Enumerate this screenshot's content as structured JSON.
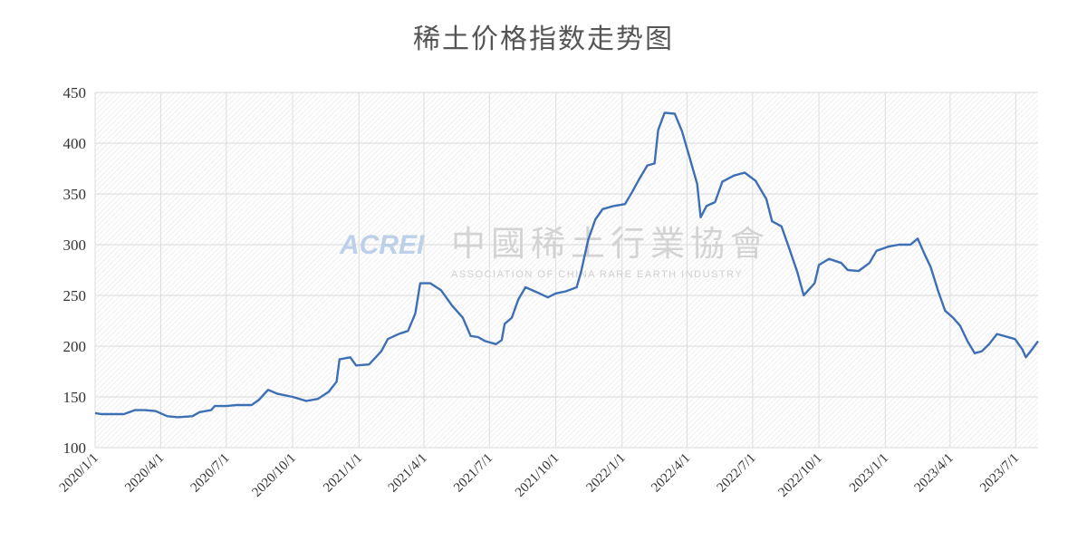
{
  "chart_data": {
    "type": "line",
    "title": "稀土价格指数走势图",
    "xlabel": "",
    "ylabel": "",
    "ylim": [
      100,
      450
    ],
    "yticks": [
      100,
      150,
      200,
      250,
      300,
      350,
      400,
      450
    ],
    "xlim": [
      "2020-01-01",
      "2023-08-01"
    ],
    "xticks": [
      "2020/1/1",
      "2020/4/1",
      "2020/7/1",
      "2020/10/1",
      "2021/1/1",
      "2021/4/1",
      "2021/7/1",
      "2021/10/1",
      "2022/1/1",
      "2022/4/1",
      "2022/7/1",
      "2022/10/1",
      "2023/1/1",
      "2023/4/1",
      "2023/7/1"
    ],
    "grid": true,
    "legend": "none",
    "line_color": "#3d6fb5",
    "series": [
      {
        "points": [
          [
            "2020-01-01",
            134
          ],
          [
            "2020-01-10",
            133
          ],
          [
            "2020-02-10",
            133
          ],
          [
            "2020-02-25",
            137
          ],
          [
            "2020-03-10",
            137
          ],
          [
            "2020-03-25",
            136
          ],
          [
            "2020-04-10",
            131
          ],
          [
            "2020-04-25",
            130
          ],
          [
            "2020-05-15",
            131
          ],
          [
            "2020-05-25",
            135
          ],
          [
            "2020-06-10",
            137
          ],
          [
            "2020-06-15",
            141
          ],
          [
            "2020-07-01",
            141
          ],
          [
            "2020-07-15",
            142
          ],
          [
            "2020-08-05",
            142
          ],
          [
            "2020-08-15",
            147
          ],
          [
            "2020-08-28",
            157
          ],
          [
            "2020-09-10",
            153
          ],
          [
            "2020-10-01",
            150
          ],
          [
            "2020-10-20",
            146
          ],
          [
            "2020-11-05",
            148
          ],
          [
            "2020-11-20",
            155
          ],
          [
            "2020-12-01",
            165
          ],
          [
            "2020-12-05",
            187
          ],
          [
            "2020-12-20",
            189
          ],
          [
            "2020-12-28",
            181
          ],
          [
            "2021-01-15",
            182
          ],
          [
            "2021-02-01",
            195
          ],
          [
            "2021-02-10",
            207
          ],
          [
            "2021-02-25",
            212
          ],
          [
            "2021-03-10",
            215
          ],
          [
            "2021-03-20",
            232
          ],
          [
            "2021-03-27",
            262
          ],
          [
            "2021-04-10",
            262
          ],
          [
            "2021-04-25",
            255
          ],
          [
            "2021-05-10",
            240
          ],
          [
            "2021-05-25",
            228
          ],
          [
            "2021-06-05",
            210
          ],
          [
            "2021-06-15",
            209
          ],
          [
            "2021-06-25",
            205
          ],
          [
            "2021-07-10",
            202
          ],
          [
            "2021-07-18",
            206
          ],
          [
            "2021-07-22",
            222
          ],
          [
            "2021-08-01",
            228
          ],
          [
            "2021-08-10",
            246
          ],
          [
            "2021-08-20",
            258
          ],
          [
            "2021-09-05",
            253
          ],
          [
            "2021-09-20",
            248
          ],
          [
            "2021-10-01",
            252
          ],
          [
            "2021-10-15",
            254
          ],
          [
            "2021-10-30",
            258
          ],
          [
            "2021-11-05",
            273
          ],
          [
            "2021-11-15",
            305
          ],
          [
            "2021-11-25",
            325
          ],
          [
            "2021-12-05",
            335
          ],
          [
            "2021-12-20",
            338
          ],
          [
            "2022-01-05",
            340
          ],
          [
            "2022-01-15",
            352
          ],
          [
            "2022-01-25",
            365
          ],
          [
            "2022-02-05",
            378
          ],
          [
            "2022-02-15",
            380
          ],
          [
            "2022-02-20",
            413
          ],
          [
            "2022-03-01",
            430
          ],
          [
            "2022-03-15",
            429
          ],
          [
            "2022-03-25",
            412
          ],
          [
            "2022-04-05",
            385
          ],
          [
            "2022-04-15",
            360
          ],
          [
            "2022-04-20",
            327
          ],
          [
            "2022-04-28",
            338
          ],
          [
            "2022-05-10",
            342
          ],
          [
            "2022-05-20",
            362
          ],
          [
            "2022-06-05",
            368
          ],
          [
            "2022-06-20",
            371
          ],
          [
            "2022-07-05",
            363
          ],
          [
            "2022-07-20",
            345
          ],
          [
            "2022-07-28",
            323
          ],
          [
            "2022-08-10",
            318
          ],
          [
            "2022-08-20",
            298
          ],
          [
            "2022-09-01",
            273
          ],
          [
            "2022-09-10",
            250
          ],
          [
            "2022-09-25",
            262
          ],
          [
            "2022-10-01",
            280
          ],
          [
            "2022-10-15",
            286
          ],
          [
            "2022-11-01",
            282
          ],
          [
            "2022-11-10",
            275
          ],
          [
            "2022-11-25",
            274
          ],
          [
            "2022-12-10",
            282
          ],
          [
            "2022-12-20",
            294
          ],
          [
            "2023-01-05",
            298
          ],
          [
            "2023-01-20",
            300
          ],
          [
            "2023-02-05",
            300
          ],
          [
            "2023-02-15",
            306
          ],
          [
            "2023-02-25",
            290
          ],
          [
            "2023-03-05",
            278
          ],
          [
            "2023-03-15",
            255
          ],
          [
            "2023-03-25",
            235
          ],
          [
            "2023-04-05",
            228
          ],
          [
            "2023-04-15",
            220
          ],
          [
            "2023-04-25",
            205
          ],
          [
            "2023-05-05",
            193
          ],
          [
            "2023-05-15",
            195
          ],
          [
            "2023-05-25",
            202
          ],
          [
            "2023-06-05",
            212
          ],
          [
            "2023-06-15",
            210
          ],
          [
            "2023-06-30",
            207
          ],
          [
            "2023-07-10",
            197
          ],
          [
            "2023-07-15",
            189
          ],
          [
            "2023-07-25",
            198
          ],
          [
            "2023-08-01",
            205
          ]
        ]
      }
    ]
  },
  "watermark": {
    "logo": "ACREI",
    "name_cn": "中國稀土行業協會",
    "name_en": "ASSOCIATION OF CHINA RARE EARTH INDUSTRY"
  }
}
